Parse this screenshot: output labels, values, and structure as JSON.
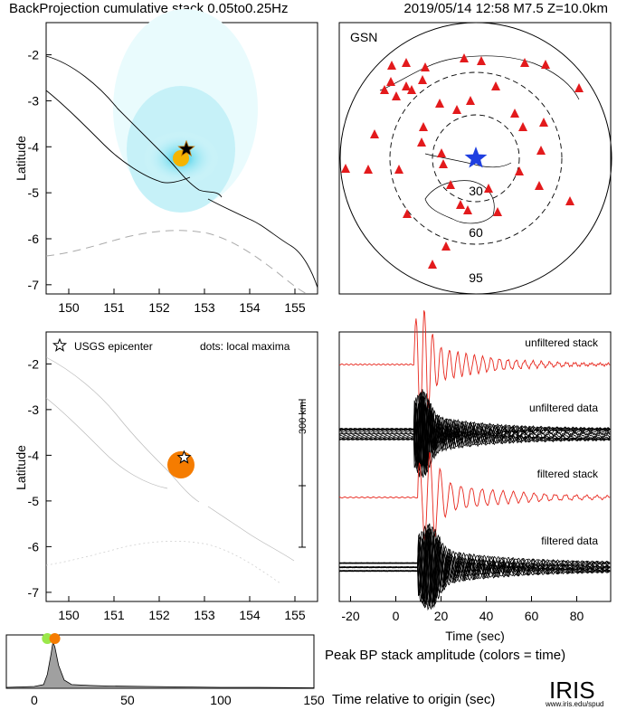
{
  "header": {
    "left_title": "BackProjection cumulative stack 0.05to0.25Hz",
    "right_title": "2019/05/14 12:58   M7.5   Z=10.0km"
  },
  "colors": {
    "red_stack": "#e8281e",
    "data_black": "#000000",
    "star_blue": "#1f3fe0",
    "station_red": "#e31a1c",
    "peak_orange": "#f57c00",
    "peak_green": "#9be84a",
    "cyan_light": "#d8f6fb",
    "cyan_mid": "#a9ecf6",
    "cyan_strong": "#5ad8ec",
    "hist_fill": "#a0a0a0"
  },
  "map_panel": {
    "ylabel": "Latitude",
    "x_ticks": [
      "150",
      "151",
      "152",
      "153",
      "154",
      "155"
    ],
    "y_ticks": [
      "-2",
      "-3",
      "-4",
      "-5",
      "-6",
      "-7"
    ],
    "xlim": [
      149.5,
      155.5
    ],
    "ylim": [
      -7.2,
      -1.3
    ],
    "epicenter": {
      "lon": 152.6,
      "lat": -4.05
    }
  },
  "gsn_panel": {
    "label": "GSN",
    "ring_labels": [
      "30",
      "60",
      "95"
    ]
  },
  "local_panel": {
    "ylabel": "Latitude",
    "legend_star": "USGS epicenter",
    "legend_dots": "dots: local maxima",
    "scale_label": "300 km",
    "x_ticks": [
      "150",
      "151",
      "152",
      "153",
      "154",
      "155"
    ],
    "y_ticks": [
      "-2",
      "-3",
      "-4",
      "-5",
      "-6",
      "-7"
    ],
    "peak": {
      "lon": 152.55,
      "lat": -4.05
    }
  },
  "trace_panel": {
    "labels": [
      "unfiltered stack",
      "unfiltered data",
      "filtered stack",
      "filtered data"
    ],
    "xlabel": "Time (sec)",
    "x_ticks": [
      "-20",
      "0",
      "20",
      "40",
      "60",
      "80"
    ],
    "xlim": [
      -25,
      95
    ]
  },
  "bottom": {
    "caption": "Peak BP stack amplitude (colors = time)",
    "xlabel": "Time relative to origin (sec)",
    "x_ticks": [
      "0",
      "50",
      "100",
      "150"
    ],
    "logo": "IRIS",
    "logo_url": "www.iris.edu/spud"
  },
  "chart_data": [
    {
      "type": "heatmap",
      "title": "BackProjection cumulative stack 0.05to0.25Hz",
      "ylabel": "Latitude",
      "xlim": [
        149.5,
        155.5
      ],
      "ylim": [
        -7.2,
        -1.3
      ],
      "peak": {
        "lon": 152.6,
        "lat": -4.05
      }
    },
    {
      "type": "scatter",
      "title": "Peak BP stack amplitude (colors = time)",
      "xlabel": "Time relative to origin (sec)",
      "xlim": [
        -15,
        150
      ],
      "peak_time": 10,
      "series": [
        {
          "x": [
            -15,
            0,
            5,
            7,
            9,
            10,
            11,
            13,
            16,
            20,
            30,
            40,
            60,
            80,
            100,
            120,
            150
          ],
          "y": [
            0.02,
            0.04,
            0.08,
            0.3,
            0.75,
            1.0,
            0.9,
            0.5,
            0.18,
            0.08,
            0.06,
            0.05,
            0.04,
            0.03,
            0.02,
            0.02,
            0.01
          ]
        }
      ]
    }
  ]
}
